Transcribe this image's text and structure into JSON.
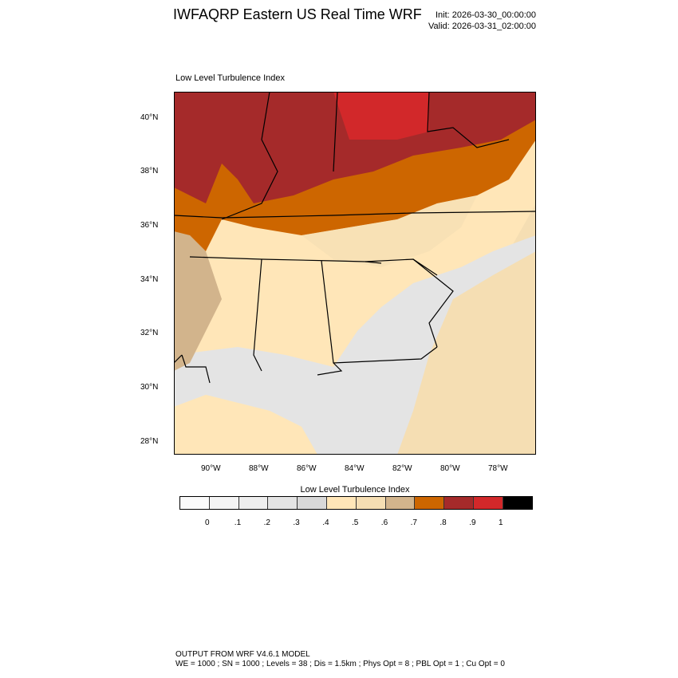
{
  "title": "IWFAQRP Eastern US Real Time WRF",
  "init": "Init: 2026-03-30_00:00:00",
  "valid": "Valid: 2026-03-31_02:00:00",
  "subtitle": "Low Level Turbulence Index",
  "lat_ticks": [
    "40°N",
    "38°N",
    "36°N",
    "34°N",
    "32°N",
    "30°N",
    "28°N"
  ],
  "lon_ticks": [
    "90°W",
    "88°W",
    "86°W",
    "84°W",
    "82°W",
    "80°W",
    "78°W"
  ],
  "colorbar": {
    "title": "Low Level Turbulence Index",
    "colors": [
      "#fafafa",
      "#f4f4f4",
      "#eeeeee",
      "#e4e4e4",
      "#d8d8d8",
      "#ffe6b8",
      "#f5deb3",
      "#d2b48c",
      "#cd6600",
      "#a52a2a",
      "#d2282a",
      "#000000"
    ],
    "labels": [
      "0",
      ".1",
      ".2",
      ".3",
      ".4",
      ".5",
      ".6",
      ".7",
      ".8",
      ".9",
      "1"
    ]
  },
  "footer": {
    "line1": "OUTPUT FROM WRF V4.6.1 MODEL",
    "line2": "WE = 1000 ; SN = 1000 ; Levels = 38 ; Dis = 1.5km ; Phys Opt = 8 ; PBL Opt = 1 ; Cu Opt = 0"
  }
}
